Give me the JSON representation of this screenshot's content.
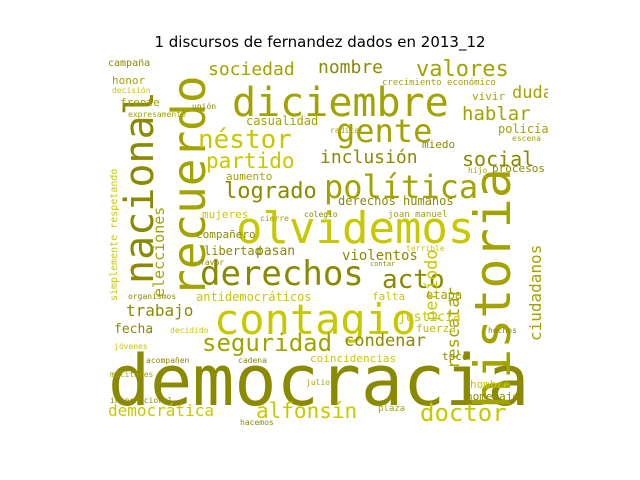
{
  "title": "1 discursos de fernandez dados en 2013_12",
  "colors": {
    "dark": "#8a8a00",
    "mid": "#a3a300",
    "light": "#c8c800",
    "pale": "#b9b913"
  },
  "words": [
    {
      "text": "democracia",
      "tone": "dark"
    },
    {
      "text": "olvidemos",
      "tone": "light"
    },
    {
      "text": "historia",
      "tone": "mid"
    },
    {
      "text": "recuerdo",
      "tone": "mid"
    },
    {
      "text": "nacional",
      "tone": "dark"
    },
    {
      "text": "diciembre",
      "tone": "mid"
    },
    {
      "text": "contagio",
      "tone": "light"
    },
    {
      "text": "derechos",
      "tone": "dark"
    },
    {
      "text": "política",
      "tone": "mid"
    },
    {
      "text": "gente",
      "tone": "mid"
    },
    {
      "text": "néstor",
      "tone": "light"
    },
    {
      "text": "valores",
      "tone": "mid"
    },
    {
      "text": "seguridad",
      "tone": "mid"
    },
    {
      "text": "alfonsín",
      "tone": "light"
    },
    {
      "text": "doctor",
      "tone": "light"
    },
    {
      "text": "acto",
      "tone": "dark"
    },
    {
      "text": "logrado",
      "tone": "dark"
    },
    {
      "text": "partido",
      "tone": "light"
    },
    {
      "text": "social",
      "tone": "dark"
    },
    {
      "text": "inclusión",
      "tone": "dark"
    },
    {
      "text": "sociedad",
      "tone": "mid"
    },
    {
      "text": "nombre",
      "tone": "dark"
    },
    {
      "text": "hablar",
      "tone": "mid"
    },
    {
      "text": "duda",
      "tone": "mid"
    },
    {
      "text": "rescatar",
      "tone": "mid"
    },
    {
      "text": "período",
      "tone": "light"
    },
    {
      "text": "ciudadanos",
      "tone": "mid"
    },
    {
      "text": "condenar",
      "tone": "dark"
    },
    {
      "text": "democrática",
      "tone": "light"
    },
    {
      "text": "trabajo",
      "tone": "dark"
    },
    {
      "text": "elecciones",
      "tone": "mid"
    },
    {
      "text": "violentos",
      "tone": "dark"
    },
    {
      "text": "derechos humanos",
      "tone": "dark"
    },
    {
      "text": "antidemocráticos",
      "tone": "light"
    },
    {
      "text": "pasan",
      "tone": "dark"
    },
    {
      "text": "libertad",
      "tone": "dark"
    },
    {
      "text": "fecha",
      "tone": "dark"
    },
    {
      "text": "coincidencias",
      "tone": "light"
    },
    {
      "text": "justicia",
      "tone": "light"
    },
    {
      "text": "fuerza",
      "tone": "pale"
    },
    {
      "text": "etapa",
      "tone": "mid"
    },
    {
      "text": "falta",
      "tone": "light"
    },
    {
      "text": "casualidad",
      "tone": "mid"
    },
    {
      "text": "policía",
      "tone": "mid"
    },
    {
      "text": "miedo",
      "tone": "dark"
    },
    {
      "text": "procesos",
      "tone": "dark"
    },
    {
      "text": "mujeres",
      "tone": "light"
    },
    {
      "text": "compañero",
      "tone": "dark"
    },
    {
      "text": "aumento",
      "tone": "mid"
    },
    {
      "text": "frente",
      "tone": "mid"
    },
    {
      "text": "honor",
      "tone": "mid"
    },
    {
      "text": "campaña",
      "tone": "dark"
    },
    {
      "text": "hombre",
      "tone": "light"
    },
    {
      "text": "homenaje",
      "tone": "dark"
    },
    {
      "text": "tocó",
      "tone": "dark"
    },
    {
      "text": "vivir",
      "tone": "mid"
    },
    {
      "text": "crecimiento económico",
      "tone": "mid"
    },
    {
      "text": "simplemente respetando",
      "tone": "light"
    },
    {
      "text": "joan manuel",
      "tone": "mid"
    },
    {
      "text": "organismos",
      "tone": "dark"
    },
    {
      "text": "hechos",
      "tone": "dark"
    },
    {
      "text": "acompañen",
      "tone": "dark"
    },
    {
      "text": "cadena",
      "tone": "dark"
    },
    {
      "text": "plaza",
      "tone": "mid"
    },
    {
      "text": "internacional",
      "tone": "dark"
    },
    {
      "text": "expresamente",
      "tone": "mid"
    },
    {
      "text": "decidido",
      "tone": "light"
    },
    {
      "text": "unión",
      "tone": "dark"
    },
    {
      "text": "decisión",
      "tone": "light"
    },
    {
      "text": "colegio",
      "tone": "dark"
    },
    {
      "text": "contar",
      "tone": "dark"
    },
    {
      "text": "terrible",
      "tone": "light"
    },
    {
      "text": "escena",
      "tone": "mid"
    },
    {
      "text": "radical",
      "tone": "mid"
    },
    {
      "text": "hijo",
      "tone": "mid"
    },
    {
      "text": "favor",
      "tone": "dark"
    },
    {
      "text": "cierre",
      "tone": "mid"
    },
    {
      "text": "julio",
      "tone": "mid"
    },
    {
      "text": "jóvenes",
      "tone": "light"
    },
    {
      "text": "militares",
      "tone": "mid"
    },
    {
      "text": "hacemos",
      "tone": "dark"
    }
  ]
}
